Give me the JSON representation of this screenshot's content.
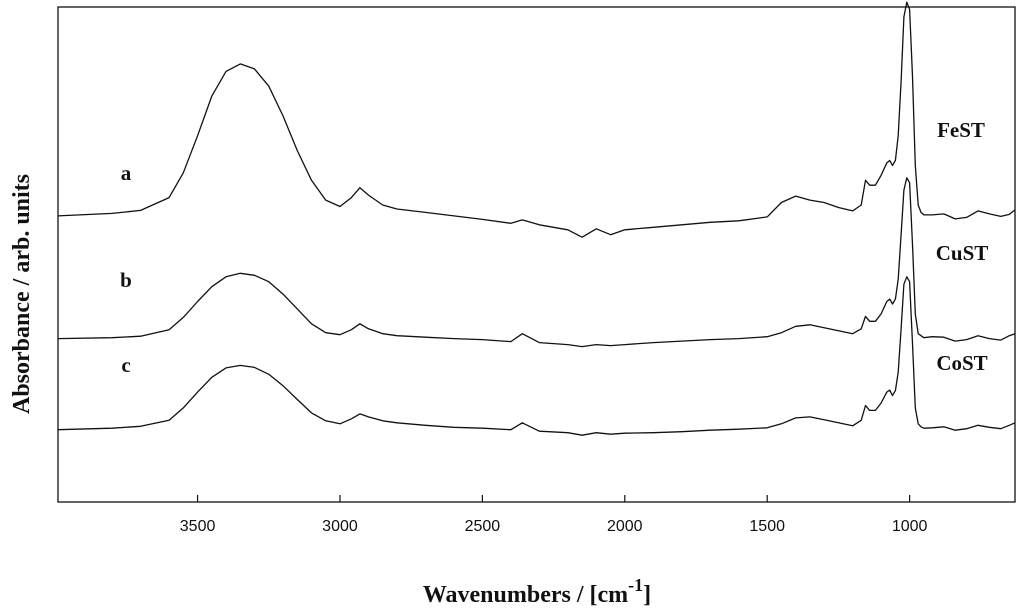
{
  "chart_data": {
    "type": "line",
    "title": "",
    "xlabel": "Wavenumbers / [cm",
    "xlabel_sup": "-1",
    "xlabel_end": "]",
    "ylabel": "Absorbance / arb. units",
    "x_reversed": true,
    "xlim": [
      3990,
      630
    ],
    "ylim": [
      0,
      1
    ],
    "x_ticks": [
      3500,
      3000,
      2500,
      2000,
      1500,
      1000
    ],
    "y_ticks_shown": false,
    "grid": false,
    "legend": "none",
    "line_color": "#111111",
    "series": [
      {
        "name": "FeST",
        "letter": "a",
        "x": [
          3990,
          3800,
          3700,
          3600,
          3550,
          3500,
          3450,
          3400,
          3350,
          3300,
          3250,
          3200,
          3150,
          3100,
          3050,
          3000,
          2960,
          2930,
          2900,
          2850,
          2800,
          2700,
          2600,
          2500,
          2400,
          2360,
          2300,
          2200,
          2150,
          2100,
          2050,
          2000,
          1900,
          1800,
          1700,
          1600,
          1500,
          1450,
          1400,
          1350,
          1300,
          1250,
          1200,
          1170,
          1155,
          1140,
          1120,
          1100,
          1080,
          1070,
          1060,
          1050,
          1040,
          1030,
          1020,
          1010,
          1000,
          990,
          980,
          970,
          960,
          950,
          920,
          880,
          840,
          800,
          760,
          720,
          680,
          650,
          630
        ],
        "y": [
          0.578,
          0.583,
          0.589,
          0.615,
          0.665,
          0.74,
          0.82,
          0.87,
          0.885,
          0.875,
          0.84,
          0.78,
          0.71,
          0.65,
          0.61,
          0.597,
          0.615,
          0.635,
          0.62,
          0.6,
          0.592,
          0.585,
          0.578,
          0.571,
          0.563,
          0.57,
          0.56,
          0.55,
          0.535,
          0.552,
          0.54,
          0.55,
          0.555,
          0.56,
          0.565,
          0.568,
          0.576,
          0.605,
          0.618,
          0.61,
          0.605,
          0.595,
          0.588,
          0.6,
          0.65,
          0.64,
          0.64,
          0.66,
          0.685,
          0.69,
          0.68,
          0.69,
          0.74,
          0.85,
          0.98,
          1.01,
          0.995,
          0.86,
          0.68,
          0.6,
          0.585,
          0.58,
          0.58,
          0.582,
          0.572,
          0.575,
          0.588,
          0.582,
          0.577,
          0.581,
          0.59
        ]
      },
      {
        "name": "CuST",
        "letter": "b",
        "x": [
          3990,
          3800,
          3700,
          3600,
          3550,
          3500,
          3450,
          3400,
          3350,
          3300,
          3250,
          3200,
          3150,
          3100,
          3050,
          3000,
          2960,
          2930,
          2900,
          2850,
          2800,
          2700,
          2600,
          2500,
          2400,
          2360,
          2300,
          2200,
          2150,
          2100,
          2050,
          2000,
          1900,
          1800,
          1700,
          1600,
          1500,
          1450,
          1400,
          1350,
          1300,
          1250,
          1200,
          1170,
          1155,
          1140,
          1120,
          1100,
          1080,
          1070,
          1060,
          1050,
          1040,
          1030,
          1020,
          1010,
          1000,
          990,
          980,
          970,
          960,
          950,
          920,
          880,
          840,
          800,
          760,
          720,
          680,
          650,
          630
        ],
        "y": [
          0.33,
          0.332,
          0.335,
          0.348,
          0.373,
          0.405,
          0.435,
          0.455,
          0.462,
          0.458,
          0.445,
          0.42,
          0.39,
          0.36,
          0.342,
          0.338,
          0.348,
          0.36,
          0.35,
          0.34,
          0.336,
          0.333,
          0.33,
          0.328,
          0.324,
          0.34,
          0.322,
          0.318,
          0.314,
          0.318,
          0.316,
          0.318,
          0.322,
          0.325,
          0.328,
          0.33,
          0.334,
          0.342,
          0.355,
          0.358,
          0.352,
          0.346,
          0.34,
          0.35,
          0.375,
          0.365,
          0.365,
          0.38,
          0.405,
          0.41,
          0.4,
          0.41,
          0.45,
          0.54,
          0.63,
          0.655,
          0.645,
          0.52,
          0.38,
          0.34,
          0.336,
          0.332,
          0.334,
          0.333,
          0.325,
          0.328,
          0.336,
          0.33,
          0.327,
          0.336,
          0.34
        ]
      },
      {
        "name": "CoST",
        "letter": "c",
        "x": [
          3990,
          3800,
          3700,
          3600,
          3550,
          3500,
          3450,
          3400,
          3350,
          3300,
          3250,
          3200,
          3150,
          3100,
          3050,
          3000,
          2960,
          2930,
          2900,
          2850,
          2800,
          2700,
          2600,
          2500,
          2400,
          2360,
          2300,
          2200,
          2150,
          2100,
          2050,
          2000,
          1900,
          1800,
          1700,
          1600,
          1500,
          1450,
          1400,
          1350,
          1300,
          1250,
          1200,
          1170,
          1155,
          1140,
          1120,
          1100,
          1080,
          1070,
          1060,
          1050,
          1040,
          1030,
          1020,
          1010,
          1000,
          990,
          980,
          970,
          960,
          950,
          920,
          880,
          840,
          800,
          760,
          720,
          680,
          650,
          630
        ],
        "y": [
          0.146,
          0.149,
          0.153,
          0.165,
          0.19,
          0.222,
          0.252,
          0.271,
          0.276,
          0.272,
          0.258,
          0.235,
          0.207,
          0.18,
          0.164,
          0.158,
          0.168,
          0.178,
          0.172,
          0.164,
          0.16,
          0.155,
          0.151,
          0.149,
          0.146,
          0.16,
          0.143,
          0.14,
          0.135,
          0.14,
          0.137,
          0.139,
          0.14,
          0.142,
          0.145,
          0.147,
          0.15,
          0.158,
          0.17,
          0.172,
          0.166,
          0.16,
          0.154,
          0.165,
          0.195,
          0.185,
          0.185,
          0.2,
          0.222,
          0.226,
          0.215,
          0.225,
          0.262,
          0.35,
          0.44,
          0.455,
          0.445,
          0.32,
          0.19,
          0.158,
          0.152,
          0.149,
          0.15,
          0.152,
          0.145,
          0.148,
          0.155,
          0.151,
          0.148,
          0.155,
          0.16
        ]
      }
    ]
  }
}
